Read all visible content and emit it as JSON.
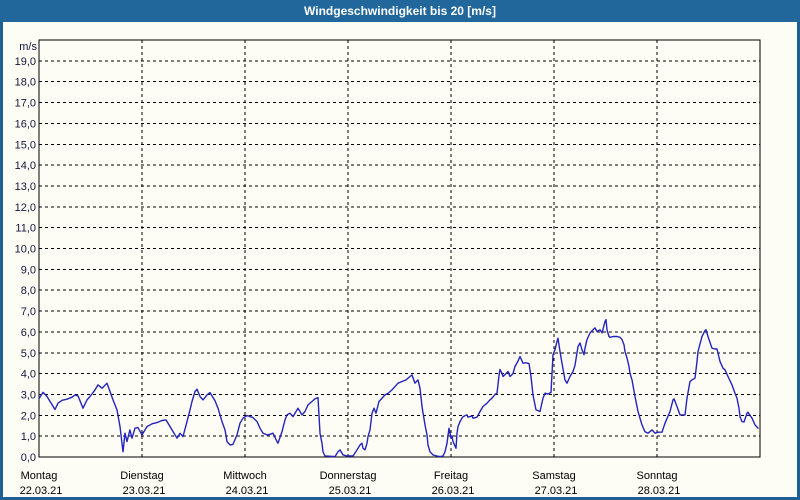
{
  "window": {
    "title": "Windgeschwindigkeit bis 20 [m/s]",
    "titlebar_color": "#21679b",
    "titlebar_text_color": "#ffffff",
    "border_color": "#1e5f94",
    "background": "#fdfdf5"
  },
  "chart_data": {
    "type": "line",
    "title": "Windgeschwindigkeit bis 20 [m/s]",
    "ylabel": "m/s",
    "unit_label": "m/s",
    "ylim": [
      0,
      20
    ],
    "ytick_step": 1.0,
    "ytick_labels": [
      "0,0",
      "1,0",
      "2,0",
      "3,0",
      "4,0",
      "5,0",
      "6,0",
      "7,0",
      "8,0",
      "9,0",
      "10,0",
      "11,0",
      "12,0",
      "13,0",
      "14,0",
      "15,0",
      "16,0",
      "17,0",
      "18,0",
      "19,0"
    ],
    "grid": "dashed",
    "grid_color": "#000000",
    "axis_color": "#000000",
    "line_color": "#2424bc",
    "tick_text_color": "#14143c",
    "day_text_color": "#000000",
    "x_days": [
      {
        "day": "Montag",
        "date": "22.03.21"
      },
      {
        "day": "Dienstag",
        "date": "23.03.21"
      },
      {
        "day": "Mittwoch",
        "date": "24.03.21"
      },
      {
        "day": "Donnerstag",
        "date": "25.03.21"
      },
      {
        "day": "Freitag",
        "date": "26.03.21"
      },
      {
        "day": "Samstag",
        "date": "27.03.21"
      },
      {
        "day": "Sonntag",
        "date": "28.03.21"
      }
    ],
    "series": [
      {
        "name": "Windgeschwindigkeit",
        "unit": "m/s",
        "points": [
          [
            0.0,
            2.8
          ],
          [
            0.039,
            3.1
          ],
          [
            0.078,
            2.9
          ],
          [
            0.155,
            2.28
          ],
          [
            0.184,
            2.58
          ],
          [
            0.223,
            2.72
          ],
          [
            0.272,
            2.77
          ],
          [
            0.32,
            2.87
          ],
          [
            0.35,
            2.98
          ],
          [
            0.379,
            2.93
          ],
          [
            0.427,
            2.34
          ],
          [
            0.466,
            2.74
          ],
          [
            0.495,
            2.9
          ],
          [
            0.544,
            3.22
          ],
          [
            0.573,
            3.46
          ],
          [
            0.612,
            3.3
          ],
          [
            0.66,
            3.54
          ],
          [
            0.689,
            3.14
          ],
          [
            0.718,
            2.74
          ],
          [
            0.757,
            2.26
          ],
          [
            0.786,
            1.46
          ],
          [
            0.816,
            0.25
          ],
          [
            0.835,
            1.14
          ],
          [
            0.854,
            0.74
          ],
          [
            0.883,
            1.3
          ],
          [
            0.903,
            0.9
          ],
          [
            0.932,
            1.38
          ],
          [
            0.961,
            1.41
          ],
          [
            1.0,
            1.06
          ],
          [
            1.049,
            1.46
          ],
          [
            1.097,
            1.59
          ],
          [
            1.146,
            1.65
          ],
          [
            1.194,
            1.75
          ],
          [
            1.233,
            1.78
          ],
          [
            1.291,
            1.3
          ],
          [
            1.34,
            0.9
          ],
          [
            1.369,
            1.14
          ],
          [
            1.398,
            0.98
          ],
          [
            1.437,
            1.7
          ],
          [
            1.466,
            2.26
          ],
          [
            1.485,
            2.66
          ],
          [
            1.515,
            3.14
          ],
          [
            1.534,
            3.25
          ],
          [
            1.563,
            2.9
          ],
          [
            1.592,
            2.74
          ],
          [
            1.631,
            2.98
          ],
          [
            1.66,
            3.09
          ],
          [
            1.709,
            2.7
          ],
          [
            1.738,
            2.34
          ],
          [
            1.777,
            1.7
          ],
          [
            1.806,
            1.3
          ],
          [
            1.825,
            0.74
          ],
          [
            1.854,
            0.58
          ],
          [
            1.883,
            0.6
          ],
          [
            1.922,
            1.06
          ],
          [
            1.951,
            1.62
          ],
          [
            1.981,
            1.86
          ],
          [
            2.019,
            1.99
          ],
          [
            2.049,
            1.94
          ],
          [
            2.078,
            1.89
          ],
          [
            2.117,
            1.7
          ],
          [
            2.146,
            1.38
          ],
          [
            2.175,
            1.14
          ],
          [
            2.214,
            1.06
          ],
          [
            2.243,
            1.09
          ],
          [
            2.272,
            1.14
          ],
          [
            2.311,
            0.74
          ],
          [
            2.32,
            0.66
          ],
          [
            2.359,
            1.22
          ],
          [
            2.388,
            1.78
          ],
          [
            2.408,
            2.02
          ],
          [
            2.437,
            2.1
          ],
          [
            2.466,
            1.94
          ],
          [
            2.505,
            2.26
          ],
          [
            2.515,
            2.34
          ],
          [
            2.553,
            2.02
          ],
          [
            2.583,
            2.18
          ],
          [
            2.612,
            2.5
          ],
          [
            2.65,
            2.66
          ],
          [
            2.68,
            2.79
          ],
          [
            2.709,
            2.85
          ],
          [
            2.728,
            1.14
          ],
          [
            2.748,
            0.66
          ],
          [
            2.757,
            0.25
          ],
          [
            2.777,
            0.05
          ],
          [
            2.874,
            0.02
          ],
          [
            2.903,
            0.25
          ],
          [
            2.922,
            0.34
          ],
          [
            2.951,
            0.1
          ],
          [
            2.99,
            0.05
          ],
          [
            3.049,
            0.05
          ],
          [
            3.087,
            0.34
          ],
          [
            3.117,
            0.58
          ],
          [
            3.136,
            0.66
          ],
          [
            3.146,
            0.42
          ],
          [
            3.165,
            0.34
          ],
          [
            3.184,
            0.66
          ],
          [
            3.194,
            0.98
          ],
          [
            3.214,
            1.3
          ],
          [
            3.233,
            2.1
          ],
          [
            3.252,
            2.34
          ],
          [
            3.272,
            2.1
          ],
          [
            3.301,
            2.66
          ],
          [
            3.359,
            2.98
          ],
          [
            3.388,
            3.05
          ],
          [
            3.427,
            3.22
          ],
          [
            3.485,
            3.54
          ],
          [
            3.524,
            3.62
          ],
          [
            3.563,
            3.7
          ],
          [
            3.602,
            3.86
          ],
          [
            3.621,
            3.94
          ],
          [
            3.65,
            3.54
          ],
          [
            3.68,
            3.7
          ],
          [
            3.699,
            3.3
          ],
          [
            3.718,
            2.42
          ],
          [
            3.748,
            1.54
          ],
          [
            3.767,
            1.06
          ],
          [
            3.777,
            0.58
          ],
          [
            3.796,
            0.25
          ],
          [
            3.825,
            0.1
          ],
          [
            3.864,
            0.05
          ],
          [
            3.893,
            0.02
          ],
          [
            3.922,
            0.05
          ],
          [
            3.942,
            0.25
          ],
          [
            3.961,
            0.66
          ],
          [
            3.981,
            1.38
          ],
          [
            4.0,
            0.9
          ],
          [
            4.01,
            1.02
          ],
          [
            4.019,
            0.74
          ],
          [
            4.049,
            0.42
          ],
          [
            4.058,
            1.14
          ],
          [
            4.068,
            1.46
          ],
          [
            4.087,
            1.7
          ],
          [
            4.107,
            1.86
          ],
          [
            4.117,
            1.94
          ],
          [
            4.155,
            2.02
          ],
          [
            4.165,
            1.91
          ],
          [
            4.204,
            1.97
          ],
          [
            4.214,
            1.86
          ],
          [
            4.252,
            1.91
          ],
          [
            4.282,
            2.18
          ],
          [
            4.311,
            2.42
          ],
          [
            4.35,
            2.58
          ],
          [
            4.379,
            2.74
          ],
          [
            4.398,
            2.82
          ],
          [
            4.427,
            3.0
          ],
          [
            4.447,
            3.06
          ],
          [
            4.466,
            3.9
          ],
          [
            4.476,
            4.2
          ],
          [
            4.495,
            4.0
          ],
          [
            4.505,
            3.86
          ],
          [
            4.524,
            3.95
          ],
          [
            4.553,
            4.1
          ],
          [
            4.573,
            3.86
          ],
          [
            4.602,
            4.0
          ],
          [
            4.621,
            4.34
          ],
          [
            4.65,
            4.6
          ],
          [
            4.67,
            4.82
          ],
          [
            4.699,
            4.5
          ],
          [
            4.728,
            4.52
          ],
          [
            4.757,
            4.48
          ],
          [
            4.777,
            3.86
          ],
          [
            4.796,
            2.98
          ],
          [
            4.825,
            2.26
          ],
          [
            4.864,
            2.18
          ],
          [
            4.893,
            2.82
          ],
          [
            4.913,
            3.06
          ],
          [
            4.942,
            3.02
          ],
          [
            4.971,
            3.1
          ],
          [
            4.99,
            4.9
          ],
          [
            5.01,
            5.14
          ],
          [
            5.029,
            5.55
          ],
          [
            5.039,
            5.7
          ],
          [
            5.058,
            5.06
          ],
          [
            5.078,
            4.5
          ],
          [
            5.107,
            3.7
          ],
          [
            5.126,
            3.54
          ],
          [
            5.155,
            3.86
          ],
          [
            5.184,
            4.1
          ],
          [
            5.204,
            4.4
          ],
          [
            5.233,
            5.3
          ],
          [
            5.252,
            5.47
          ],
          [
            5.272,
            5.14
          ],
          [
            5.291,
            4.9
          ],
          [
            5.301,
            5.22
          ],
          [
            5.32,
            5.63
          ],
          [
            5.35,
            5.95
          ],
          [
            5.379,
            6.1
          ],
          [
            5.398,
            6.19
          ],
          [
            5.417,
            6.02
          ],
          [
            5.447,
            6.1
          ],
          [
            5.466,
            5.95
          ],
          [
            5.495,
            6.5
          ],
          [
            5.505,
            6.59
          ],
          [
            5.515,
            6.1
          ],
          [
            5.534,
            5.78
          ],
          [
            5.544,
            5.74
          ],
          [
            5.573,
            5.78
          ],
          [
            5.612,
            5.78
          ],
          [
            5.641,
            5.74
          ],
          [
            5.66,
            5.63
          ],
          [
            5.68,
            5.38
          ],
          [
            5.689,
            5.06
          ],
          [
            5.709,
            4.75
          ],
          [
            5.728,
            4.34
          ],
          [
            5.738,
            4.02
          ],
          [
            5.757,
            3.7
          ],
          [
            5.786,
            2.9
          ],
          [
            5.816,
            2.18
          ],
          [
            5.854,
            1.54
          ],
          [
            5.883,
            1.22
          ],
          [
            5.913,
            1.14
          ],
          [
            5.951,
            1.3
          ],
          [
            5.981,
            1.14
          ],
          [
            6.01,
            1.19
          ],
          [
            6.049,
            1.19
          ],
          [
            6.078,
            1.62
          ],
          [
            6.126,
            2.18
          ],
          [
            6.155,
            2.74
          ],
          [
            6.165,
            2.79
          ],
          [
            6.194,
            2.42
          ],
          [
            6.223,
            2.02
          ],
          [
            6.272,
            2.02
          ],
          [
            6.291,
            2.82
          ],
          [
            6.32,
            3.62
          ],
          [
            6.34,
            3.7
          ],
          [
            6.369,
            3.78
          ],
          [
            6.388,
            4.58
          ],
          [
            6.398,
            5.06
          ],
          [
            6.437,
            5.78
          ],
          [
            6.466,
            6.06
          ],
          [
            6.476,
            6.1
          ],
          [
            6.495,
            5.78
          ],
          [
            6.534,
            5.22
          ],
          [
            6.563,
            5.18
          ],
          [
            6.583,
            5.18
          ],
          [
            6.612,
            4.58
          ],
          [
            6.641,
            4.26
          ],
          [
            6.66,
            4.18
          ],
          [
            6.689,
            3.86
          ],
          [
            6.728,
            3.46
          ],
          [
            6.757,
            3.06
          ],
          [
            6.777,
            2.82
          ],
          [
            6.796,
            2.34
          ],
          [
            6.806,
            1.94
          ],
          [
            6.825,
            1.7
          ],
          [
            6.845,
            1.68
          ],
          [
            6.874,
            2.1
          ],
          [
            6.883,
            2.15
          ],
          [
            6.922,
            1.86
          ],
          [
            6.951,
            1.54
          ],
          [
            6.981,
            1.38
          ]
        ]
      }
    ]
  }
}
